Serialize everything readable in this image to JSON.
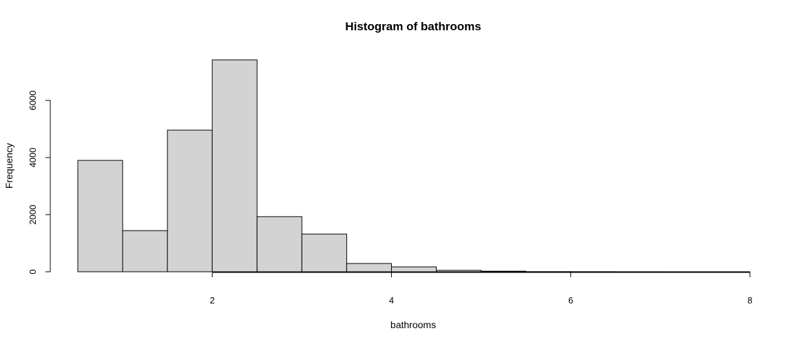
{
  "chart_data": {
    "type": "bar",
    "title": "Histogram of  bathrooms",
    "xlabel": "bathrooms",
    "ylabel": "Frequency",
    "bin_edges": [
      0.5,
      1.0,
      1.5,
      2.0,
      2.5,
      3.0,
      3.5,
      4.0,
      4.5,
      5.0,
      5.5,
      6.0,
      6.5,
      7.0,
      7.5,
      8.0
    ],
    "values": [
      3900,
      1440,
      4960,
      7420,
      1930,
      1320,
      290,
      170,
      50,
      20,
      5,
      3,
      2,
      1,
      1
    ],
    "xlim": [
      0.5,
      8.0
    ],
    "ylim": [
      0,
      7420
    ],
    "x_ticks": [
      2,
      4,
      6,
      8
    ],
    "y_ticks": [
      0,
      2000,
      4000,
      6000
    ],
    "bar_fill": "#d3d3d3",
    "grid": false
  }
}
